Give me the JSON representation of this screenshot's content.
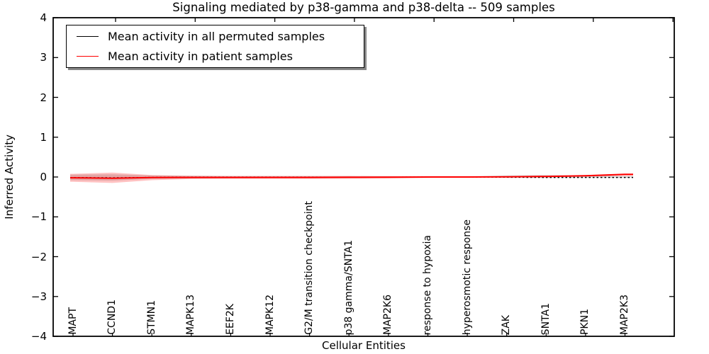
{
  "title": "Signaling mediated by p38-gamma and p38-delta -- 509 samples",
  "axes": {
    "ylabel": "Inferred Activity",
    "xlabel": "Cellular Entities",
    "yticks": [
      {
        "v": 4,
        "label": "4"
      },
      {
        "v": 3,
        "label": "3"
      },
      {
        "v": 2,
        "label": "2"
      },
      {
        "v": 1,
        "label": "1"
      },
      {
        "v": 0,
        "label": "0"
      },
      {
        "v": -1,
        "label": "−1"
      },
      {
        "v": -2,
        "label": "−2"
      },
      {
        "v": -3,
        "label": "−3"
      },
      {
        "v": -4,
        "label": "−4"
      }
    ]
  },
  "legend": {
    "items": [
      {
        "label": "Mean activity in all permuted samples",
        "color": "#000000"
      },
      {
        "label": "Mean activity in patient samples",
        "color": "#ff0000"
      }
    ]
  },
  "chart_data": {
    "type": "line",
    "title": "Signaling mediated by p38-gamma and p38-delta -- 509 samples",
    "xlabel": "Cellular Entities",
    "ylabel": "Inferred Activity",
    "ylim": [
      -4,
      4
    ],
    "grid": false,
    "legend_position": "upper left",
    "categories": [
      "MAPT",
      "CCND1",
      "STMN1",
      "MAPK13",
      "EEF2K",
      "MAPK12",
      "G2/M transition checkpoint",
      "p38 gamma/SNTA1",
      "MAP2K6",
      "response to hypoxia",
      "hyperosmotic response",
      "ZAK",
      "SNTA1",
      "PKN1",
      "MAP2K3"
    ],
    "series": [
      {
        "name": "Mean activity in all permuted samples",
        "color": "#000000",
        "style": "dotted",
        "values": [
          -0.015,
          -0.02,
          -0.01,
          -0.005,
          -0.005,
          -0.005,
          -0.005,
          -0.005,
          -0.005,
          0.0,
          0.0,
          -0.005,
          -0.01,
          -0.01,
          -0.01
        ]
      },
      {
        "name": "Mean activity in patient samples",
        "color": "#ff0000",
        "style": "solid",
        "values": [
          -0.02,
          -0.03,
          -0.015,
          -0.01,
          -0.01,
          -0.01,
          -0.01,
          -0.008,
          -0.005,
          0.0,
          0.0,
          0.005,
          0.015,
          0.03,
          0.065
        ]
      }
    ],
    "bands": [
      {
        "name": "permuted-samples-std-band",
        "color": "rgba(130,130,130,0.30)",
        "upper": [
          0.06,
          0.07,
          0.04,
          0.03,
          0.025,
          0.025,
          0.025,
          0.025,
          0.02,
          0.015,
          0.01,
          0.04,
          0.05,
          0.04,
          0.02
        ],
        "lower": [
          -0.08,
          -0.09,
          -0.05,
          -0.04,
          -0.035,
          -0.03,
          -0.03,
          -0.03,
          -0.025,
          -0.02,
          -0.01,
          -0.02,
          -0.02,
          -0.02,
          -0.02
        ]
      },
      {
        "name": "patient-samples-std-band",
        "color": "rgba(255,0,0,0.24)",
        "upper": [
          0.08,
          0.11,
          0.05,
          0.03,
          0.025,
          0.025,
          0.025,
          0.025,
          0.02,
          0.015,
          0.005,
          0.02,
          0.035,
          0.05,
          0.075
        ],
        "lower": [
          -0.12,
          -0.15,
          -0.08,
          -0.05,
          -0.045,
          -0.045,
          -0.045,
          -0.04,
          -0.035,
          -0.02,
          -0.005,
          -0.01,
          0.0,
          0.01,
          0.03
        ]
      }
    ]
  }
}
